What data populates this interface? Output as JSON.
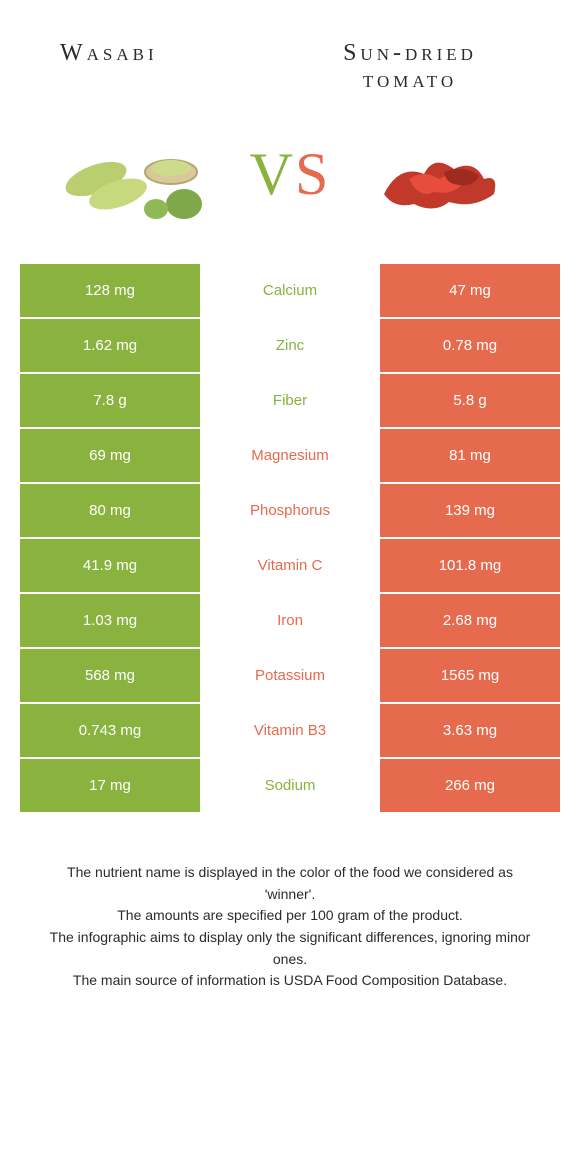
{
  "infographic_type": "comparison-table",
  "colors": {
    "left": "#8ab23f",
    "right": "#e66a4d",
    "background": "#ffffff",
    "text": "#2b2b2b"
  },
  "header": {
    "left_title": "Wasabi",
    "right_title": "Sun-dried tomato",
    "vs_label_v": "V",
    "vs_label_s": "S"
  },
  "rows": [
    {
      "nutrient": "Calcium",
      "left": "128 mg",
      "right": "47 mg",
      "winner": "left"
    },
    {
      "nutrient": "Zinc",
      "left": "1.62 mg",
      "right": "0.78 mg",
      "winner": "left"
    },
    {
      "nutrient": "Fiber",
      "left": "7.8 g",
      "right": "5.8 g",
      "winner": "left"
    },
    {
      "nutrient": "Magnesium",
      "left": "69 mg",
      "right": "81 mg",
      "winner": "right"
    },
    {
      "nutrient": "Phosphorus",
      "left": "80 mg",
      "right": "139 mg",
      "winner": "right"
    },
    {
      "nutrient": "Vitamin C",
      "left": "41.9 mg",
      "right": "101.8 mg",
      "winner": "right"
    },
    {
      "nutrient": "Iron",
      "left": "1.03 mg",
      "right": "2.68 mg",
      "winner": "right"
    },
    {
      "nutrient": "Potassium",
      "left": "568 mg",
      "right": "1565 mg",
      "winner": "right"
    },
    {
      "nutrient": "Vitamin B3",
      "left": "0.743 mg",
      "right": "3.63 mg",
      "winner": "right"
    },
    {
      "nutrient": "Sodium",
      "left": "17 mg",
      "right": "266 mg",
      "winner": "left"
    }
  ],
  "footer": {
    "line1": "The nutrient name is displayed in the color of the food we considered as 'winner'.",
    "line2": "The amounts are specified per 100 gram of the product.",
    "line3": "The infographic aims to display only the significant differences, ignoring minor ones.",
    "line4": "The main source of information is USDA Food Composition Database."
  }
}
